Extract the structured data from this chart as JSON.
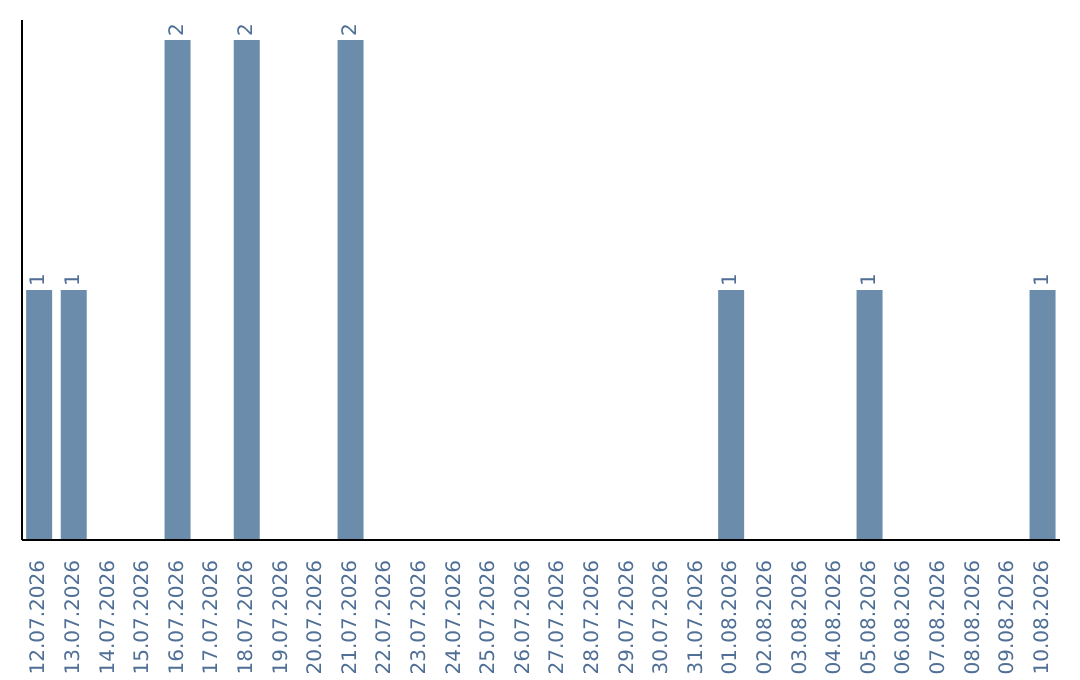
{
  "chart_data": {
    "type": "bar",
    "categories": [
      "12.07.2026",
      "13.07.2026",
      "14.07.2026",
      "15.07.2026",
      "16.07.2026",
      "17.07.2026",
      "18.07.2026",
      "19.07.2026",
      "20.07.2026",
      "21.07.2026",
      "22.07.2026",
      "23.07.2026",
      "24.07.2026",
      "25.07.2026",
      "26.07.2026",
      "27.07.2026",
      "28.07.2026",
      "29.07.2026",
      "30.07.2026",
      "31.07.2026",
      "01.08.2026",
      "02.08.2026",
      "03.08.2026",
      "04.08.2026",
      "05.08.2026",
      "06.08.2026",
      "07.08.2026",
      "08.08.2026",
      "09.08.2026",
      "10.08.2026"
    ],
    "values": [
      1,
      1,
      null,
      null,
      2,
      null,
      2,
      null,
      null,
      2,
      null,
      null,
      null,
      null,
      null,
      null,
      null,
      null,
      null,
      null,
      1,
      null,
      null,
      null,
      1,
      null,
      null,
      null,
      null,
      1
    ],
    "color": "#6b8cab",
    "data_labels": true,
    "grid": false,
    "legend": false
  }
}
